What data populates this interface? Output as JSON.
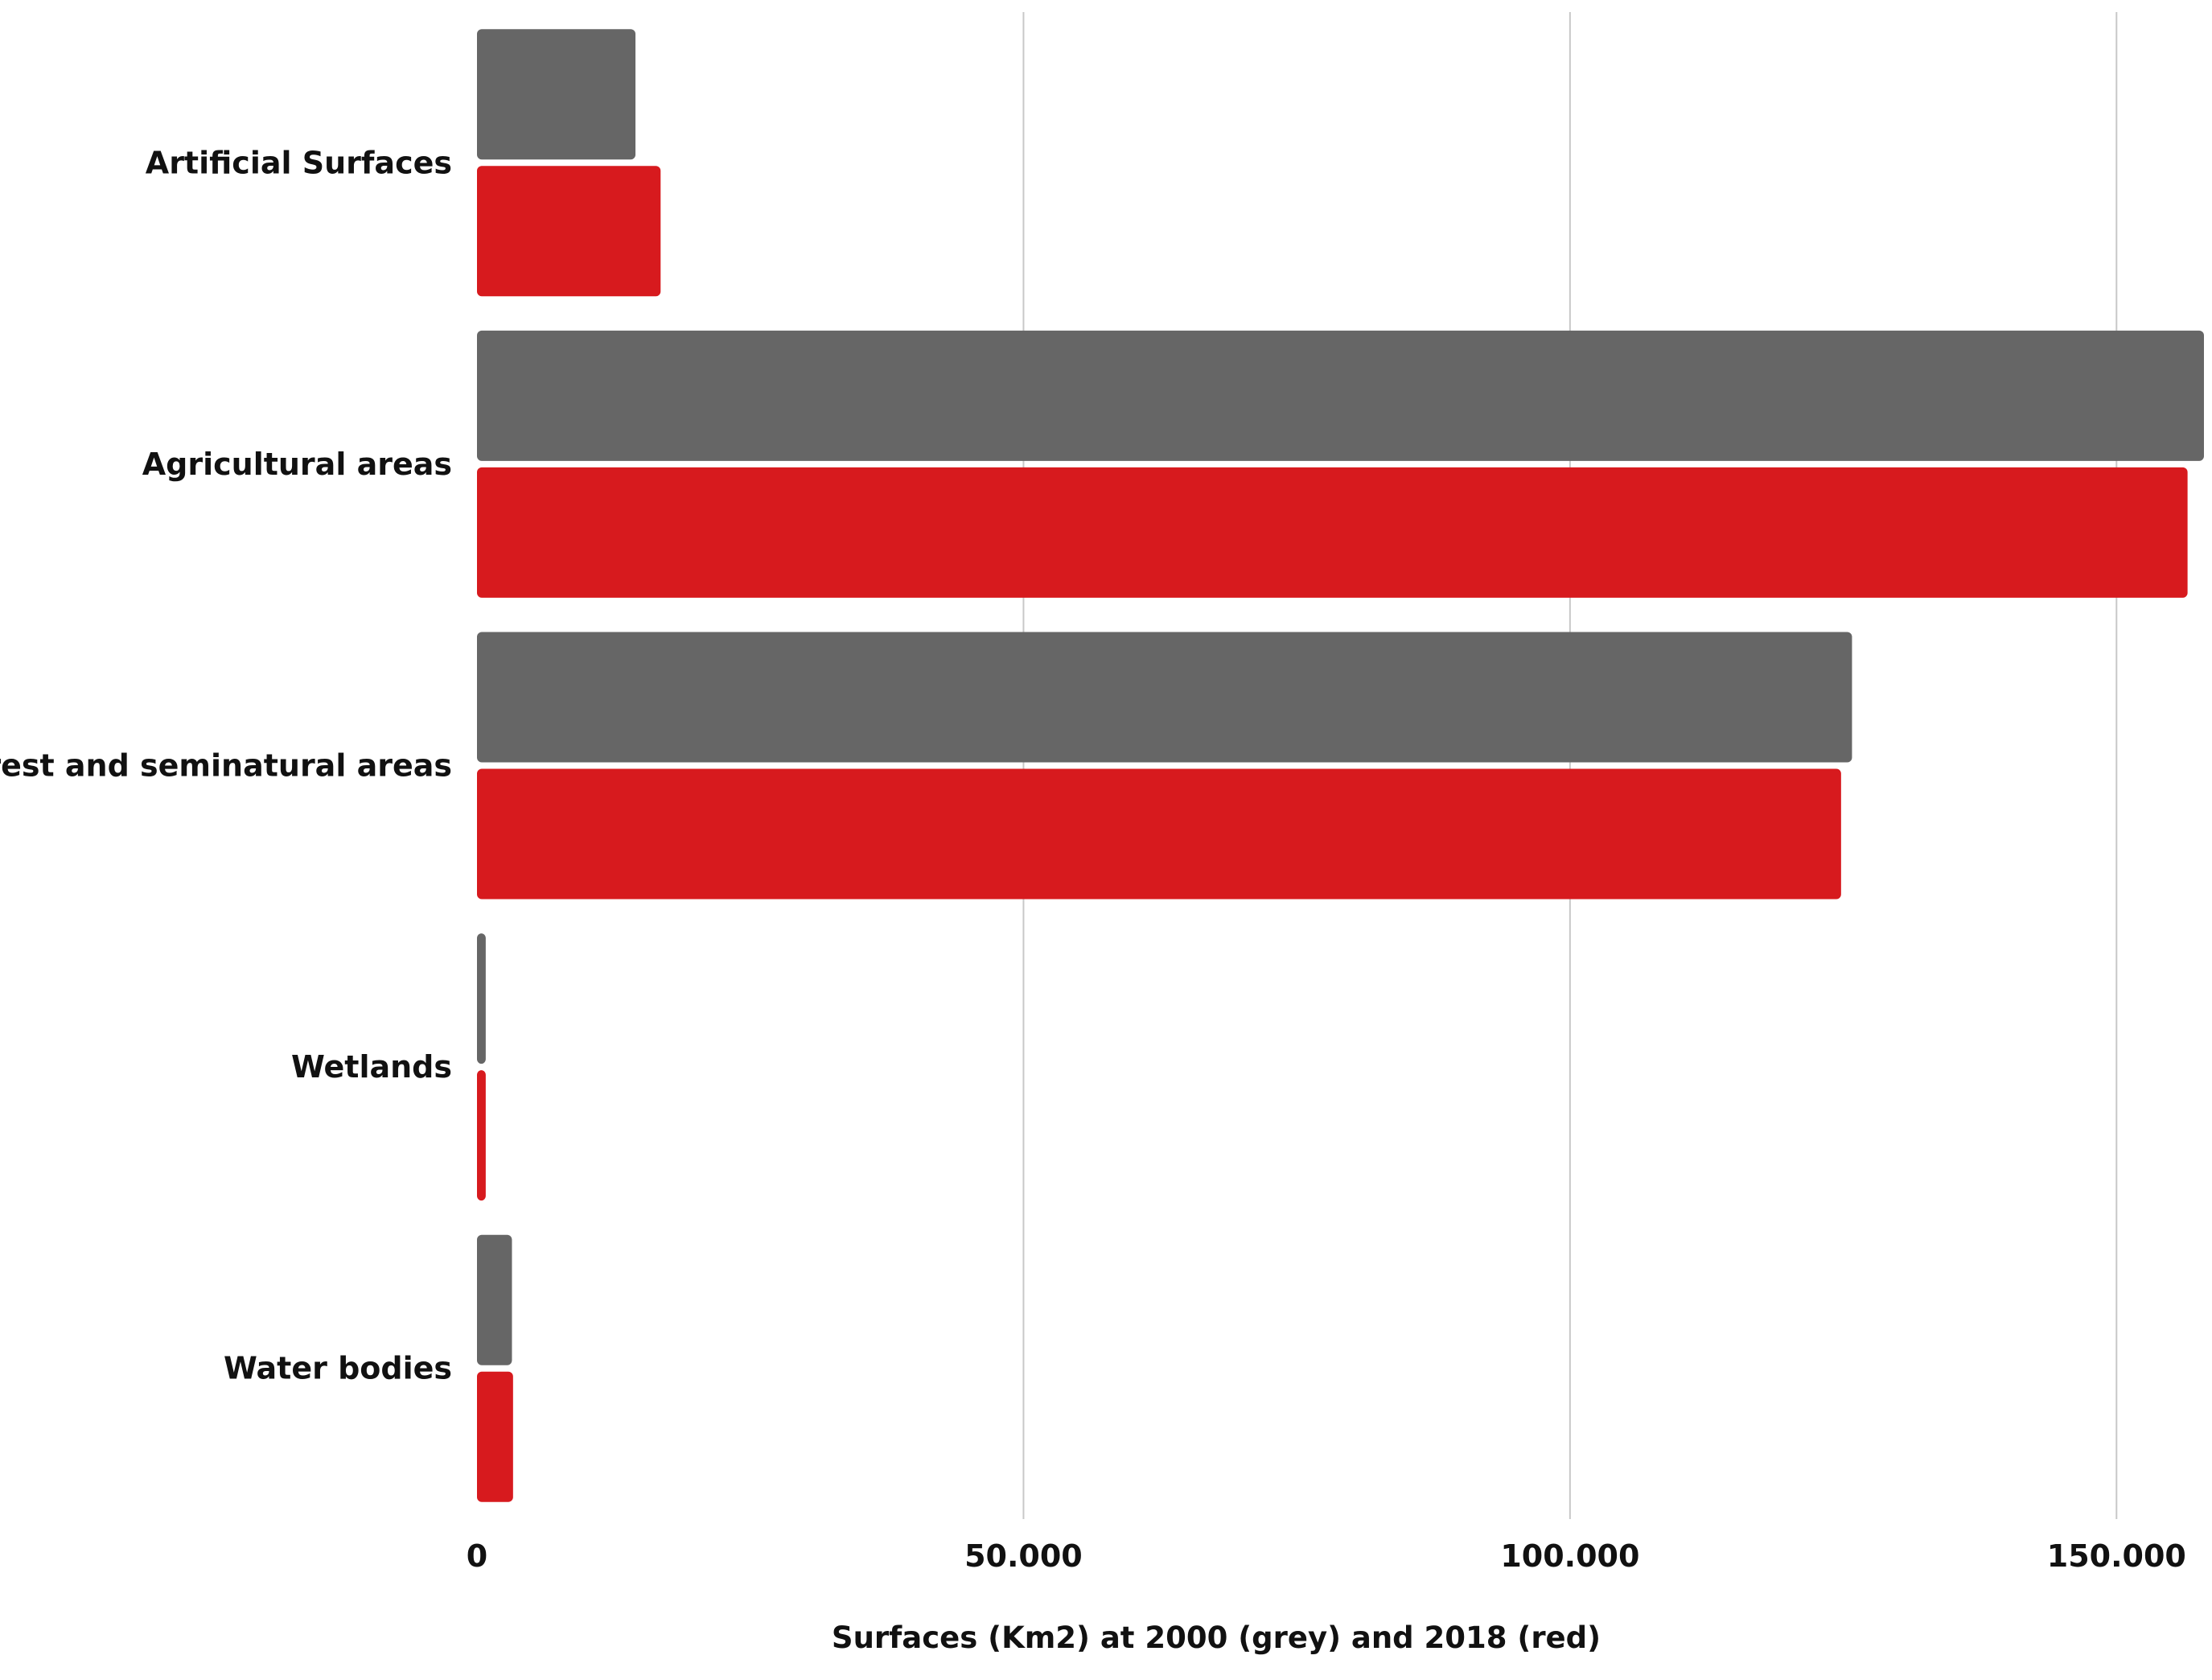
{
  "chart_data": {
    "type": "bar",
    "orientation": "horizontal",
    "categories": [
      "Artificial Surfaces",
      "Agricultural areas",
      "Forest and seminatural areas",
      "Wetlands",
      "Water bodies"
    ],
    "series": [
      {
        "values": [
          14500,
          158000,
          125800,
          800,
          3200
        ]
      },
      {
        "values": [
          16800,
          156500,
          124800,
          800,
          3300
        ]
      }
    ],
    "xlabel": "Surfaces (Km2) at 2000 (grey) and 2018 (red)",
    "ylabel": "",
    "xlim": [
      0,
      158000
    ],
    "xticks": [
      0,
      50000,
      100000,
      150000
    ],
    "xtick_labels": [
      "0",
      "50.000",
      "100.000",
      "150.000"
    ],
    "grid": true,
    "colors": {
      "2000": "#666666",
      "2018": "#d71a1e"
    }
  }
}
